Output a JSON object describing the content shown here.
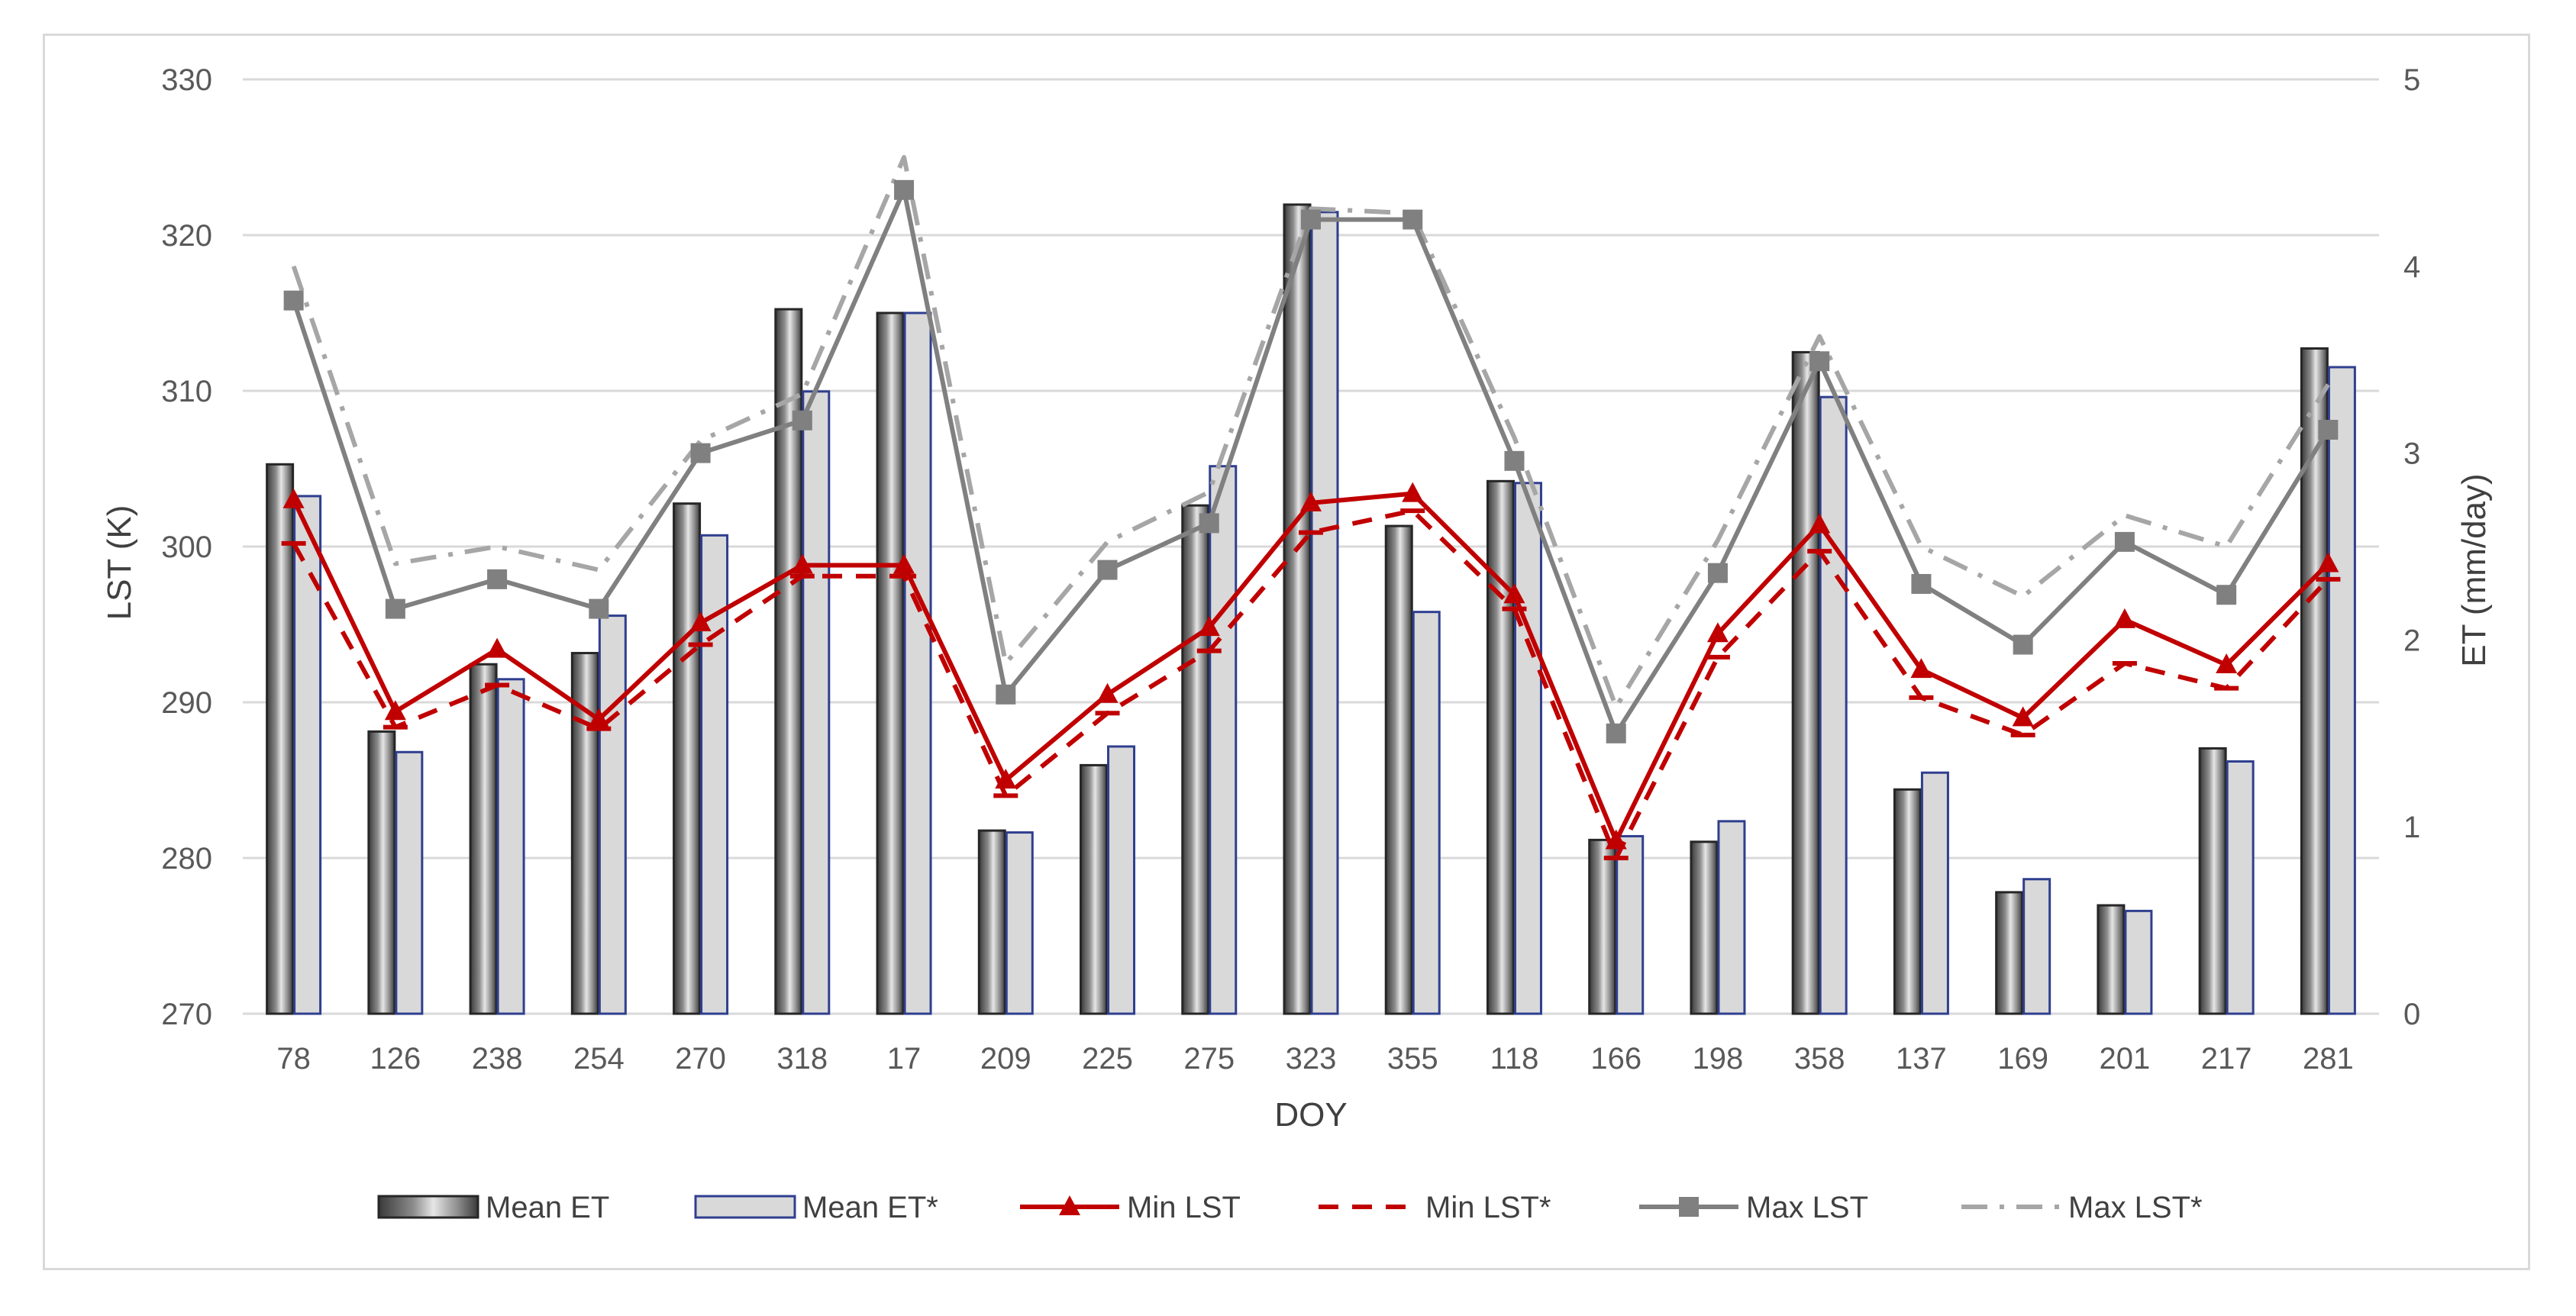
{
  "chart_data": {
    "type": "bar",
    "title": "",
    "xlabel": "DOY",
    "ylabel_left": "LST (K)",
    "ylabel_right": "ET (mm/day)",
    "ylim_left": [
      270,
      330
    ],
    "ylim_right": [
      0,
      5
    ],
    "yticks_left": [
      270,
      280,
      290,
      300,
      310,
      320,
      330
    ],
    "yticks_right": [
      0,
      1,
      2,
      3,
      4,
      5
    ],
    "grid": true,
    "legend_position": "bottom",
    "categories": [
      "78",
      "126",
      "238",
      "254",
      "270",
      "318",
      "17",
      "209",
      "225",
      "275",
      "323",
      "355",
      "118",
      "166",
      "198",
      "358",
      "137",
      "169",
      "201",
      "217",
      "281"
    ],
    "series": [
      {
        "name": "Mean ET",
        "type": "bar",
        "axis": "right",
        "color": "#555555",
        "values": [
          2.94,
          1.51,
          1.87,
          1.93,
          2.73,
          3.77,
          3.75,
          0.98,
          1.33,
          2.72,
          4.33,
          2.61,
          2.85,
          0.93,
          0.92,
          3.54,
          1.2,
          0.65,
          0.58,
          1.42,
          3.56
        ]
      },
      {
        "name": "Mean ET*",
        "type": "bar",
        "axis": "right",
        "color": "#d9d9d9",
        "values": [
          2.77,
          1.4,
          1.79,
          2.13,
          2.56,
          3.33,
          3.75,
          0.97,
          1.43,
          2.93,
          4.29,
          2.15,
          2.84,
          0.95,
          1.03,
          3.3,
          1.29,
          0.72,
          0.55,
          1.35,
          3.46
        ]
      },
      {
        "name": "Min LST",
        "type": "line",
        "axis": "left",
        "color": "#c00000",
        "style": "solid",
        "marker": "triangle",
        "values": [
          303.0,
          289.4,
          293.4,
          288.9,
          295.1,
          298.8,
          298.8,
          285.0,
          290.5,
          294.8,
          302.8,
          303.4,
          296.9,
          281.1,
          294.4,
          301.4,
          292.1,
          289.0,
          295.3,
          292.4,
          298.9
        ]
      },
      {
        "name": "Min LST*",
        "type": "line",
        "axis": "left",
        "color": "#c00000",
        "style": "dash",
        "marker": "dash",
        "values": [
          300.2,
          288.4,
          291.1,
          288.3,
          293.7,
          298.1,
          298.1,
          284.0,
          289.3,
          293.3,
          300.9,
          302.3,
          296.0,
          280.0,
          292.9,
          299.7,
          290.3,
          287.9,
          292.5,
          290.9,
          297.9
        ]
      },
      {
        "name": "Max LST",
        "type": "line",
        "axis": "left",
        "color": "#808080",
        "style": "solid",
        "marker": "square",
        "values": [
          315.8,
          296.0,
          297.9,
          296.0,
          306.0,
          308.1,
          322.9,
          290.5,
          298.5,
          301.5,
          321.0,
          321.0,
          305.5,
          288.0,
          298.3,
          311.9,
          297.6,
          293.7,
          300.3,
          296.9,
          307.5
        ]
      },
      {
        "name": "Max LST*",
        "type": "line",
        "axis": "left",
        "color": "#a6a6a6",
        "style": "dashdot",
        "marker": "none",
        "values": [
          318.0,
          298.9,
          300.0,
          298.5,
          306.8,
          309.8,
          325.0,
          292.5,
          300.3,
          303.5,
          321.7,
          321.4,
          307.0,
          289.7,
          300.4,
          313.5,
          300.0,
          296.8,
          302.0,
          300.0,
          310.4
        ]
      }
    ]
  }
}
